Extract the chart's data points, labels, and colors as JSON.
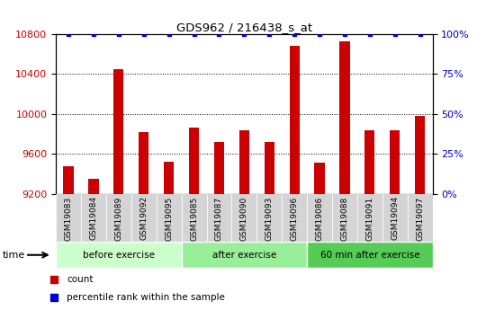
{
  "title": "GDS962 / 216438_s_at",
  "samples": [
    "GSM19083",
    "GSM19084",
    "GSM19089",
    "GSM19092",
    "GSM19095",
    "GSM19085",
    "GSM19087",
    "GSM19090",
    "GSM19093",
    "GSM19096",
    "GSM19086",
    "GSM19088",
    "GSM19091",
    "GSM19094",
    "GSM19097"
  ],
  "counts": [
    9480,
    9350,
    10450,
    9820,
    9520,
    9860,
    9720,
    9840,
    9720,
    10680,
    9510,
    10730,
    9840,
    9840,
    9980
  ],
  "percentile_ranks": [
    100,
    100,
    100,
    100,
    100,
    100,
    100,
    100,
    100,
    100,
    100,
    100,
    100,
    100,
    100
  ],
  "groups": [
    {
      "label": "before exercise",
      "start": 0,
      "end": 5,
      "color": "#ccffcc"
    },
    {
      "label": "after exercise",
      "start": 5,
      "end": 10,
      "color": "#99ee99"
    },
    {
      "label": "60 min after exercise",
      "start": 10,
      "end": 15,
      "color": "#55cc55"
    }
  ],
  "bar_color": "#cc0000",
  "dot_color": "#0000cc",
  "ylim_left": [
    9200,
    10800
  ],
  "ylim_right": [
    0,
    100
  ],
  "yticks_left": [
    9200,
    9600,
    10000,
    10400,
    10800
  ],
  "yticks_right": [
    0,
    25,
    50,
    75,
    100
  ],
  "bg_color": "#ffffff",
  "plot_bg": "#ffffff",
  "xtick_bg": "#d4d4d4",
  "grid_color": "#000000",
  "label_count": "count",
  "label_percentile": "percentile rank within the sample",
  "time_label": "time"
}
